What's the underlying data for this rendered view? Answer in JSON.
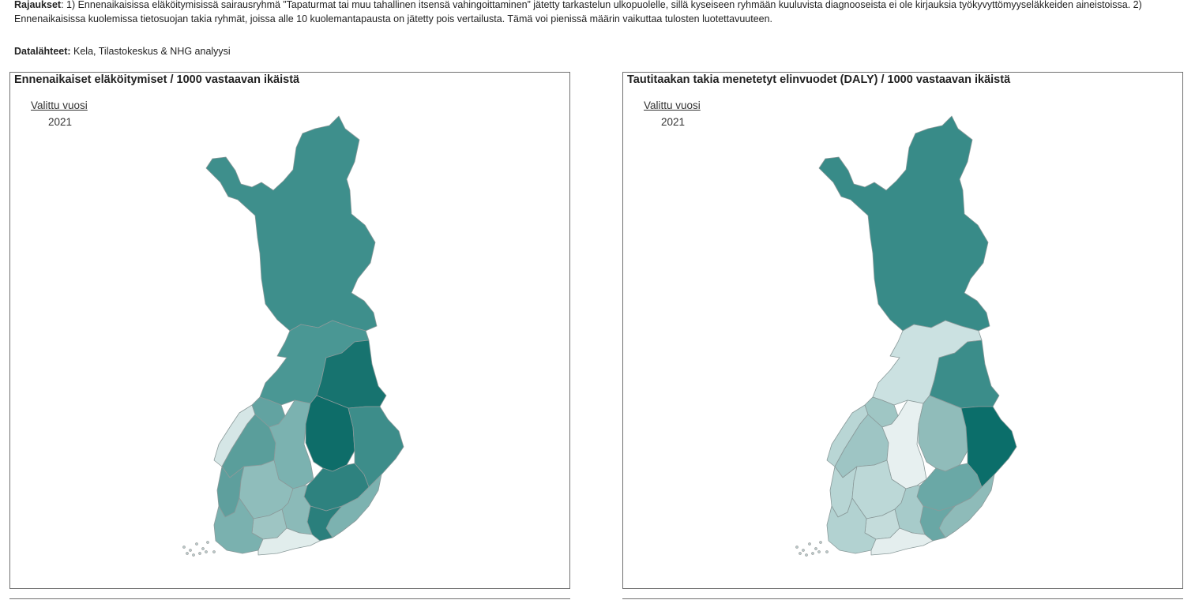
{
  "notes": {
    "restrictions_label": "Rajaukset",
    "restrictions_text": ": 1) Ennenaikaisissa eläköitymisissä sairausryhmä ”Tapaturmat tai muu tahallinen itsensä vahingoittaminen” jätetty tarkastelun ulkopuolelle, sillä kyseiseen ryhmään kuuluvista diagnooseista ei ole kirjauksia työkyvyttömyyseläkkeiden aineistoissa. 2) Ennenaikaisissa kuolemissa tietosuojan takia ryhmät, joissa alle 10 kuolemantapausta on jätetty pois vertailusta. Tämä voi pienissä määrin vaikuttaa tulosten luotettavuuteen.",
    "sources_label": "Datalähteet:",
    "sources_text": " Kela, Tilastokeskus & NHG analyysi"
  },
  "panels": [
    {
      "title": "Ennenaikaiset eläköitymiset / 1000 vastaavan ikäistä",
      "year_label": "Valittu vuosi",
      "year_value": "2021",
      "region_colors": {
        "lapland": "#3e8f8c",
        "north_ostrobothnia": "#4a9794",
        "kainuu": "#17736f",
        "central_ostrobothnia": "#62a3a1",
        "ostrobothnia": "#d5e6e6",
        "south_ostrobothnia": "#5a9e9b",
        "central_finland": "#7bb2b0",
        "north_savo": "#0e6d69",
        "north_karelia": "#3d8d8a",
        "satakunta": "#5e9f9d",
        "pirkanmaa": "#8fbdbb",
        "south_savo": "#2e827f",
        "south_karelia": "#7cb2b0",
        "kymenlaakso": "#2a7f7c",
        "paijat_hame": "#8bbab8",
        "kanta_hame": "#9ec5c3",
        "southwest_finland": "#7ab1af",
        "uusimaa": "#e1edec"
      }
    },
    {
      "title": "Tautitaakan takia menetetyt elinvuodet (DALY) / 1000 vastaavan ikäistä",
      "year_label": "Valittu vuosi",
      "year_value": "2021",
      "region_colors": {
        "lapland": "#388b88",
        "north_ostrobothnia": "#cbe1e1",
        "kainuu": "#3b8d8a",
        "central_ostrobothnia": "#9fc6c4",
        "ostrobothnia": "#b9d6d5",
        "south_ostrobothnia": "#9ec5c4",
        "central_finland": "#e7f0f0",
        "north_savo": "#90bcba",
        "north_karelia": "#0b6e6a",
        "satakunta": "#b7d5d4",
        "pirkanmaa": "#bcd8d7",
        "south_savo": "#6aa8a6",
        "south_karelia": "#8ebbb9",
        "kymenlaakso": "#69a7a5",
        "paijat_hame": "#a7cbca",
        "kanta_hame": "#c4dcdb",
        "southwest_finland": "#b2d2d1",
        "uusimaa": "#e4eeee"
      }
    }
  ]
}
